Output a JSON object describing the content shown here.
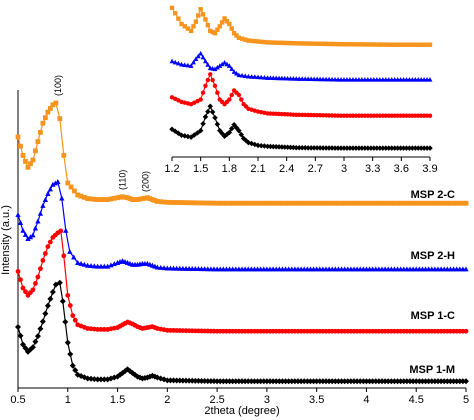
{
  "chart_data": [
    {
      "type": "line",
      "role": "main",
      "xlabel": "2theta (degree)",
      "ylabel": "Intensity (a.u.)",
      "xlim": [
        0.5,
        5
      ],
      "x_ticks": [
        "0.5",
        "1",
        "1.5",
        "2",
        "2.5",
        "3",
        "3.5",
        "4",
        "4.5",
        "5"
      ],
      "annotations": [
        {
          "text": "(100)",
          "x": 0.9
        },
        {
          "text": "(110)",
          "x": 1.55
        },
        {
          "text": "(200)",
          "x": 1.78
        }
      ],
      "series": [
        {
          "name": "MSP 2-C",
          "color": "#f7941d",
          "marker": "square",
          "offset": 3,
          "peak_x": 0.88,
          "x": [
            0.5,
            0.55,
            0.6,
            0.65,
            0.7,
            0.75,
            0.8,
            0.85,
            0.88,
            0.92,
            0.96,
            1.0,
            1.1,
            1.2,
            1.3,
            1.4,
            1.5,
            1.55,
            1.6,
            1.65,
            1.7,
            1.75,
            1.8,
            1.85,
            1.9,
            2.0,
            2.5,
            3.0,
            3.5,
            4.0,
            4.5,
            5.0
          ],
          "y": [
            0.75,
            0.55,
            0.42,
            0.5,
            0.7,
            0.9,
            1.02,
            1.1,
            1.12,
            0.95,
            0.55,
            0.25,
            0.12,
            0.08,
            0.07,
            0.07,
            0.09,
            0.1,
            0.09,
            0.07,
            0.07,
            0.08,
            0.09,
            0.07,
            0.05,
            0.04,
            0.03,
            0.03,
            0.03,
            0.03,
            0.03,
            0.03
          ]
        },
        {
          "name": "MSP 2-H",
          "color": "#0000ff",
          "marker": "triangle",
          "offset": 2,
          "peak_x": 0.9,
          "x": [
            0.5,
            0.55,
            0.6,
            0.65,
            0.7,
            0.75,
            0.8,
            0.85,
            0.9,
            0.94,
            0.98,
            1.02,
            1.1,
            1.2,
            1.3,
            1.4,
            1.5,
            1.55,
            1.6,
            1.65,
            1.7,
            1.75,
            1.8,
            1.85,
            1.9,
            2.0,
            2.5,
            3.0,
            3.5,
            4.0,
            4.5,
            5.0
          ],
          "y": [
            0.62,
            0.45,
            0.36,
            0.4,
            0.55,
            0.72,
            0.85,
            0.95,
            0.98,
            0.8,
            0.45,
            0.22,
            0.1,
            0.07,
            0.06,
            0.06,
            0.1,
            0.12,
            0.1,
            0.08,
            0.08,
            0.09,
            0.09,
            0.07,
            0.05,
            0.04,
            0.03,
            0.03,
            0.03,
            0.03,
            0.03,
            0.03
          ]
        },
        {
          "name": "MSP 1-C",
          "color": "#ff0000",
          "marker": "circle",
          "offset": 1,
          "peak_x": 0.93,
          "x": [
            0.5,
            0.55,
            0.6,
            0.65,
            0.7,
            0.75,
            0.8,
            0.85,
            0.9,
            0.93,
            0.96,
            1.0,
            1.05,
            1.1,
            1.2,
            1.3,
            1.4,
            1.5,
            1.55,
            1.6,
            1.65,
            1.7,
            1.75,
            1.8,
            1.85,
            1.9,
            2.0,
            2.5,
            3.0,
            3.5,
            4.0,
            4.5,
            5.0
          ],
          "y": [
            0.68,
            0.5,
            0.42,
            0.48,
            0.62,
            0.8,
            0.95,
            1.05,
            1.1,
            1.12,
            0.85,
            0.42,
            0.2,
            0.1,
            0.06,
            0.05,
            0.05,
            0.07,
            0.1,
            0.13,
            0.11,
            0.08,
            0.06,
            0.07,
            0.08,
            0.06,
            0.04,
            0.03,
            0.03,
            0.03,
            0.03,
            0.03,
            0.03
          ]
        },
        {
          "name": "MSP 1-M",
          "color": "#000000",
          "marker": "diamond",
          "offset": 0,
          "peak_x": 0.92,
          "x": [
            0.5,
            0.55,
            0.6,
            0.65,
            0.7,
            0.75,
            0.8,
            0.85,
            0.88,
            0.92,
            0.95,
            1.0,
            1.05,
            1.1,
            1.2,
            1.3,
            1.4,
            1.5,
            1.55,
            1.6,
            1.65,
            1.7,
            1.75,
            1.8,
            1.85,
            1.9,
            2.0,
            2.5,
            3.0,
            3.5,
            4.0,
            4.5,
            5.0
          ],
          "y": [
            0.62,
            0.43,
            0.35,
            0.4,
            0.52,
            0.68,
            0.85,
            1.0,
            1.08,
            1.1,
            0.9,
            0.45,
            0.2,
            0.1,
            0.06,
            0.05,
            0.05,
            0.08,
            0.12,
            0.16,
            0.12,
            0.08,
            0.06,
            0.07,
            0.09,
            0.07,
            0.04,
            0.03,
            0.03,
            0.03,
            0.03,
            0.03,
            0.03
          ]
        }
      ]
    },
    {
      "type": "line",
      "role": "inset",
      "xlim": [
        1.2,
        3.9
      ],
      "x_ticks": [
        "1.2",
        "1.5",
        "1.8",
        "2.1",
        "2.4",
        "2.7",
        "3",
        "3.3",
        "3.6",
        "3.9"
      ],
      "series": [
        {
          "name": "MSP 2-C",
          "color": "#f7941d",
          "marker": "square",
          "offset": 3,
          "x": [
            1.2,
            1.3,
            1.4,
            1.45,
            1.5,
            1.55,
            1.6,
            1.65,
            1.7,
            1.75,
            1.8,
            1.85,
            1.9,
            2.0,
            2.2,
            2.5,
            3.0,
            3.5,
            3.9
          ],
          "y": [
            0.85,
            0.5,
            0.35,
            0.55,
            0.82,
            0.6,
            0.35,
            0.3,
            0.45,
            0.62,
            0.5,
            0.3,
            0.2,
            0.14,
            0.1,
            0.08,
            0.06,
            0.05,
            0.05
          ]
        },
        {
          "name": "MSP 2-H",
          "color": "#0000ff",
          "marker": "triangle",
          "offset": 2,
          "x": [
            1.2,
            1.3,
            1.4,
            1.45,
            1.5,
            1.55,
            1.6,
            1.65,
            1.7,
            1.75,
            1.8,
            1.85,
            1.9,
            2.0,
            2.2,
            2.5,
            3.0,
            3.5,
            3.9
          ],
          "y": [
            0.45,
            0.38,
            0.35,
            0.5,
            0.62,
            0.45,
            0.3,
            0.28,
            0.35,
            0.42,
            0.35,
            0.22,
            0.15,
            0.12,
            0.09,
            0.07,
            0.05,
            0.05,
            0.05
          ]
        },
        {
          "name": "MSP 1-C",
          "color": "#ff0000",
          "marker": "circle",
          "offset": 1,
          "x": [
            1.2,
            1.3,
            1.4,
            1.5,
            1.55,
            1.6,
            1.65,
            1.7,
            1.75,
            1.8,
            1.85,
            1.9,
            1.95,
            2.0,
            2.1,
            2.2,
            2.5,
            3.0,
            3.5,
            3.9
          ],
          "y": [
            0.45,
            0.35,
            0.3,
            0.4,
            0.7,
            0.95,
            0.7,
            0.4,
            0.3,
            0.4,
            0.6,
            0.5,
            0.3,
            0.2,
            0.14,
            0.1,
            0.07,
            0.05,
            0.05,
            0.05
          ]
        },
        {
          "name": "MSP 1-M",
          "color": "#000000",
          "marker": "diamond",
          "offset": 0,
          "x": [
            1.2,
            1.3,
            1.4,
            1.5,
            1.55,
            1.6,
            1.65,
            1.7,
            1.75,
            1.8,
            1.85,
            1.9,
            1.95,
            2.0,
            2.1,
            2.2,
            2.5,
            3.0,
            3.5,
            3.9
          ],
          "y": [
            0.45,
            0.32,
            0.28,
            0.42,
            0.72,
            0.95,
            0.7,
            0.42,
            0.3,
            0.38,
            0.55,
            0.42,
            0.25,
            0.16,
            0.1,
            0.08,
            0.05,
            0.04,
            0.04,
            0.04
          ]
        }
      ]
    }
  ]
}
